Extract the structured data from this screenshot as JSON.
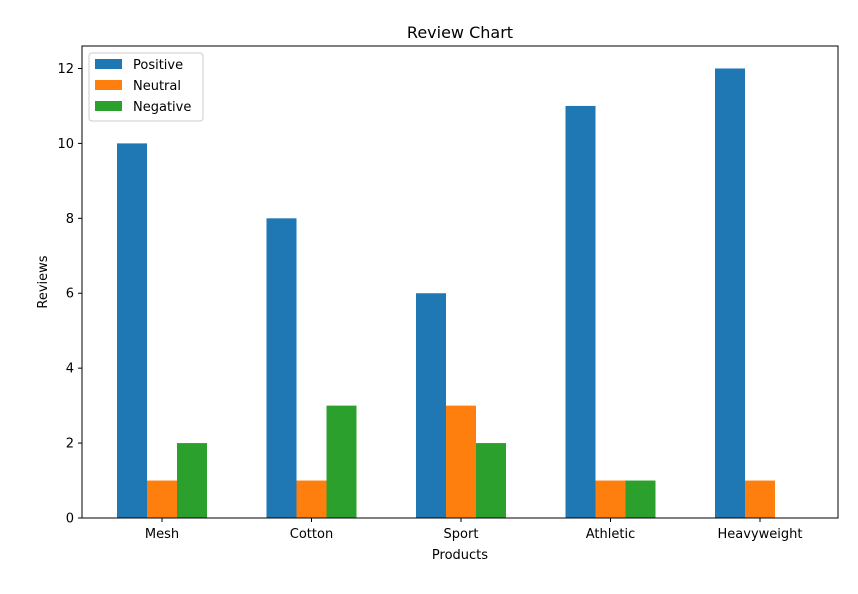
{
  "chart_data": {
    "type": "bar",
    "title": "Review Chart",
    "xlabel": "Products",
    "ylabel": "Reviews",
    "categories": [
      "Mesh",
      "Cotton",
      "Sport",
      "Athletic",
      "Heavyweight"
    ],
    "series": [
      {
        "name": "Positive",
        "color": "#1f77b4",
        "values": [
          10,
          8,
          6,
          11,
          12
        ]
      },
      {
        "name": "Neutral",
        "color": "#ff7f0e",
        "values": [
          1,
          1,
          3,
          1,
          1
        ]
      },
      {
        "name": "Negative",
        "color": "#2ca02c",
        "values": [
          2,
          3,
          2,
          1,
          0
        ]
      }
    ],
    "ylim": [
      0,
      12.6
    ],
    "yticks": [
      0,
      2,
      4,
      6,
      8,
      10,
      12
    ],
    "legend": "top-left",
    "grid": false
  }
}
